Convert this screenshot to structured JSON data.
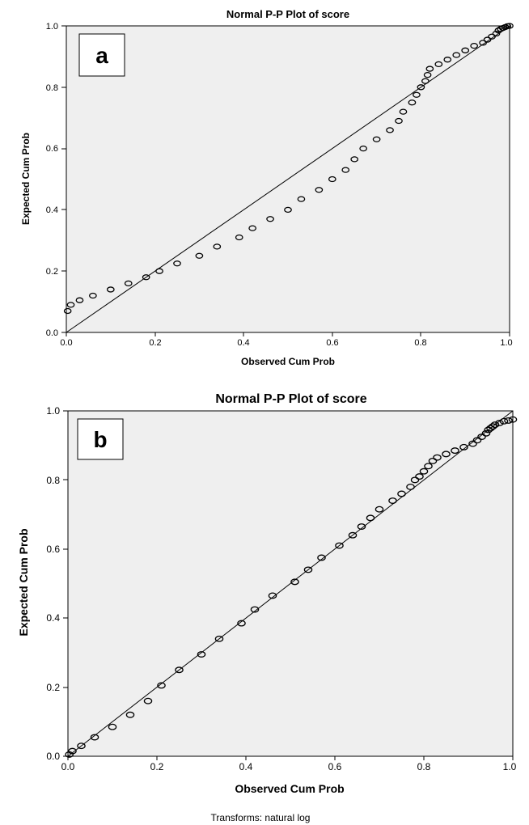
{
  "chart_data": [
    {
      "type": "scatter",
      "panel_label": "a",
      "title": "Normal P-P Plot of score",
      "xlabel": "Observed Cum Prob",
      "ylabel": "Expected Cum Prob",
      "xlim": [
        0,
        1
      ],
      "ylim": [
        0,
        1
      ],
      "xticks": [
        "0.0",
        "0.2",
        "0.4",
        "0.6",
        "0.8",
        "1.0"
      ],
      "yticks": [
        "0.0",
        "0.2",
        "0.4",
        "0.6",
        "0.8",
        "1.0"
      ],
      "reference_line": [
        [
          0,
          0
        ],
        [
          1,
          1
        ]
      ],
      "points": [
        [
          0.003,
          0.07
        ],
        [
          0.01,
          0.09
        ],
        [
          0.03,
          0.105
        ],
        [
          0.06,
          0.12
        ],
        [
          0.1,
          0.14
        ],
        [
          0.14,
          0.16
        ],
        [
          0.18,
          0.18
        ],
        [
          0.21,
          0.2
        ],
        [
          0.25,
          0.225
        ],
        [
          0.3,
          0.25
        ],
        [
          0.34,
          0.28
        ],
        [
          0.39,
          0.31
        ],
        [
          0.42,
          0.34
        ],
        [
          0.46,
          0.37
        ],
        [
          0.5,
          0.4
        ],
        [
          0.53,
          0.435
        ],
        [
          0.57,
          0.465
        ],
        [
          0.6,
          0.5
        ],
        [
          0.63,
          0.53
        ],
        [
          0.65,
          0.565
        ],
        [
          0.67,
          0.6
        ],
        [
          0.7,
          0.63
        ],
        [
          0.73,
          0.66
        ],
        [
          0.75,
          0.69
        ],
        [
          0.76,
          0.72
        ],
        [
          0.78,
          0.75
        ],
        [
          0.79,
          0.775
        ],
        [
          0.8,
          0.8
        ],
        [
          0.81,
          0.82
        ],
        [
          0.815,
          0.84
        ],
        [
          0.82,
          0.86
        ],
        [
          0.84,
          0.875
        ],
        [
          0.86,
          0.89
        ],
        [
          0.88,
          0.905
        ],
        [
          0.9,
          0.92
        ],
        [
          0.92,
          0.935
        ],
        [
          0.94,
          0.945
        ],
        [
          0.95,
          0.955
        ],
        [
          0.96,
          0.965
        ],
        [
          0.97,
          0.975
        ],
        [
          0.975,
          0.985
        ],
        [
          0.98,
          0.99
        ],
        [
          0.985,
          0.993
        ],
        [
          0.99,
          0.996
        ],
        [
          0.995,
          0.999
        ],
        [
          1.0,
          1.0
        ]
      ]
    },
    {
      "type": "scatter",
      "panel_label": "b",
      "title": "Normal P-P Plot of score",
      "xlabel": "Observed Cum Prob",
      "ylabel": "Expected Cum Prob",
      "xlim": [
        0,
        1
      ],
      "ylim": [
        0,
        1
      ],
      "xticks": [
        "0.0",
        "0.2",
        "0.4",
        "0.6",
        "0.8",
        "1.0"
      ],
      "yticks": [
        "0.0",
        "0.2",
        "0.4",
        "0.6",
        "0.8",
        "1.0"
      ],
      "reference_line": [
        [
          0,
          0
        ],
        [
          1,
          1
        ]
      ],
      "points": [
        [
          0.003,
          0.005
        ],
        [
          0.01,
          0.015
        ],
        [
          0.03,
          0.03
        ],
        [
          0.06,
          0.055
        ],
        [
          0.1,
          0.085
        ],
        [
          0.14,
          0.12
        ],
        [
          0.18,
          0.16
        ],
        [
          0.21,
          0.205
        ],
        [
          0.25,
          0.25
        ],
        [
          0.3,
          0.295
        ],
        [
          0.34,
          0.34
        ],
        [
          0.39,
          0.385
        ],
        [
          0.42,
          0.425
        ],
        [
          0.46,
          0.465
        ],
        [
          0.51,
          0.505
        ],
        [
          0.54,
          0.54
        ],
        [
          0.57,
          0.575
        ],
        [
          0.61,
          0.61
        ],
        [
          0.64,
          0.64
        ],
        [
          0.66,
          0.665
        ],
        [
          0.68,
          0.69
        ],
        [
          0.7,
          0.715
        ],
        [
          0.73,
          0.74
        ],
        [
          0.75,
          0.76
        ],
        [
          0.77,
          0.78
        ],
        [
          0.78,
          0.8
        ],
        [
          0.79,
          0.81
        ],
        [
          0.8,
          0.825
        ],
        [
          0.81,
          0.84
        ],
        [
          0.82,
          0.855
        ],
        [
          0.83,
          0.865
        ],
        [
          0.85,
          0.875
        ],
        [
          0.87,
          0.885
        ],
        [
          0.89,
          0.895
        ],
        [
          0.91,
          0.905
        ],
        [
          0.92,
          0.915
        ],
        [
          0.93,
          0.925
        ],
        [
          0.94,
          0.935
        ],
        [
          0.945,
          0.945
        ],
        [
          0.95,
          0.95
        ],
        [
          0.955,
          0.955
        ],
        [
          0.96,
          0.96
        ],
        [
          0.97,
          0.965
        ],
        [
          0.98,
          0.97
        ],
        [
          0.99,
          0.972
        ],
        [
          1.0,
          0.975
        ]
      ]
    }
  ],
  "footnote": "Transforms: natural log"
}
